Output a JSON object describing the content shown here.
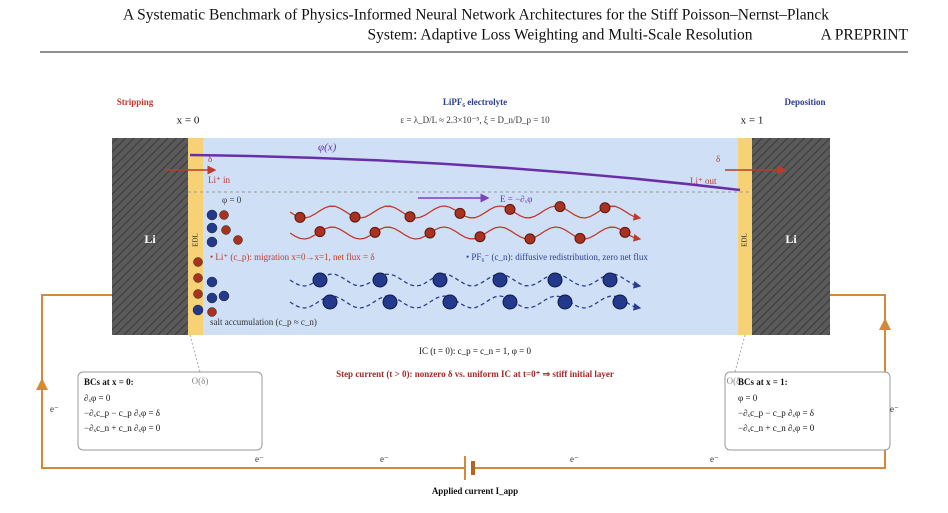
{
  "header": {
    "title_line1": "A Systematic Benchmark of Physics-Informed Neural Network Architectures for the Stiff Poisson–Nernst–Planck",
    "title_line2": "System: Adaptive Loss Weighting and Multi-Scale Resolution",
    "tag": "A PREPRINT"
  },
  "figure": {
    "stripping": "Stripping",
    "deposition": "Deposition",
    "x0": "x = 0",
    "x1": "x = 1",
    "electrolyte": "LiPF₆ electrolyte",
    "params": "ε = λ_D/L ≈ 2.3×10⁻⁵,   ξ = D_n/D_p = 10",
    "li_left": "Li",
    "li_right": "Li",
    "edl_left": "EDL",
    "edl_right": "EDL",
    "phi_curve": "φ(x)",
    "delta_left": "δ",
    "li_in": "Li⁺ in",
    "delta_right": "δ",
    "li_out": "Li⁺ out",
    "phi_zero": "φ = 0",
    "field": "E = −∂ₓφ",
    "cation_note": "• Li⁺ (c_p): migration x=0→x=1, net flux = δ",
    "anion_note": "• PF₆⁻ (c_n): diffusive redistribution, zero net flux",
    "salt": "salt accumulation (c_p ≈ c_n)",
    "ic": "IC (t = 0):  c_p = c_n = 1,   φ = 0",
    "step": "Step current (t > 0): nonzero δ vs. uniform IC at t=0⁺ ⇒ stiff initial layer",
    "o_left": "O(δ)",
    "o_right": "O(δ)",
    "bc_left": {
      "title": "BCs at x = 0:",
      "lines": [
        "∂ₓφ = 0",
        "−∂ₓc_p − c_p ∂ₓφ = δ",
        "−∂ₓc_n + c_n ∂ₓφ = 0"
      ]
    },
    "bc_right": {
      "title": "BCs at x = 1:",
      "lines": [
        "φ = 0",
        "−∂ₓc_p − c_p ∂ₓφ = δ",
        "−∂ₓc_n + c_n ∂ₓφ = 0"
      ]
    },
    "electron": "e⁻",
    "applied": "Applied current I_app"
  }
}
